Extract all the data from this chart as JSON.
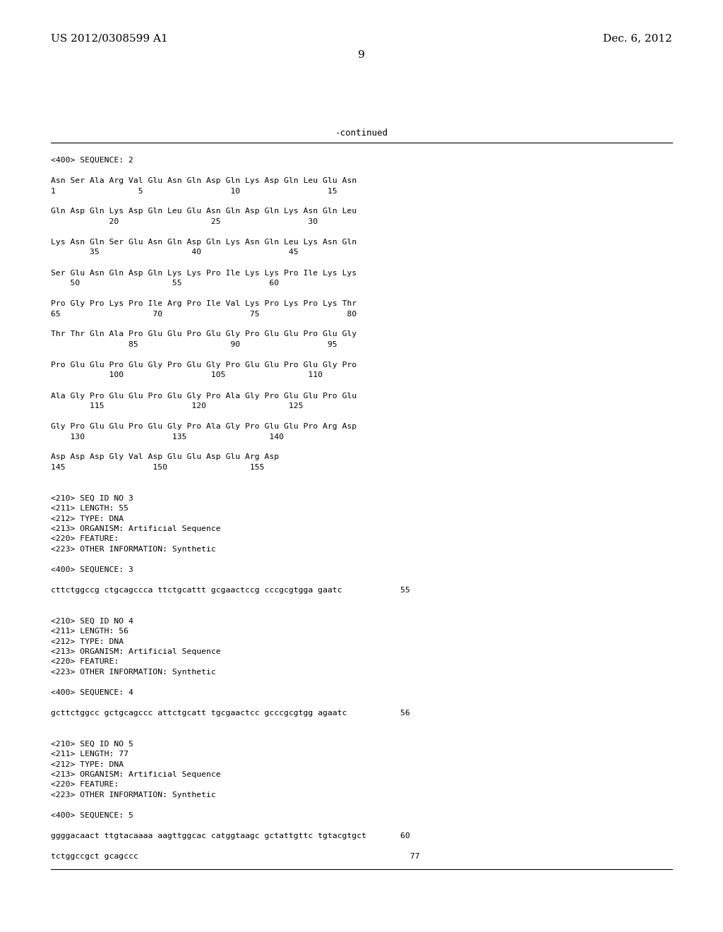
{
  "header_left": "US 2012/0308599 A1",
  "header_right": "Dec. 6, 2012",
  "page_number": "9",
  "continued_text": "-continued",
  "background_color": "#ffffff",
  "text_color": "#000000",
  "lines": [
    "<400> SEQUENCE: 2",
    "",
    "Asn Ser Ala Arg Val Glu Asn Gln Asp Gln Lys Asp Gln Leu Glu Asn",
    "1                 5                  10                  15",
    "",
    "Gln Asp Gln Lys Asp Gln Leu Glu Asn Gln Asp Gln Lys Asn Gln Leu",
    "            20                   25                  30",
    "",
    "Lys Asn Gln Ser Glu Asn Gln Asp Gln Lys Asn Gln Leu Lys Asn Gln",
    "        35                   40                  45",
    "",
    "Ser Glu Asn Gln Asp Gln Lys Lys Pro Ile Lys Lys Pro Ile Lys Lys",
    "    50                   55                  60",
    "",
    "Pro Gly Pro Lys Pro Ile Arg Pro Ile Val Lys Pro Lys Pro Lys Thr",
    "65                   70                  75                  80",
    "",
    "Thr Thr Gln Ala Pro Glu Glu Pro Glu Gly Pro Glu Glu Pro Glu Gly",
    "                85                   90                  95",
    "",
    "Pro Glu Glu Pro Glu Gly Pro Glu Gly Pro Glu Glu Pro Glu Gly Pro",
    "            100                  105                 110",
    "",
    "Ala Gly Pro Glu Glu Pro Glu Gly Pro Ala Gly Pro Glu Glu Pro Glu",
    "        115                  120                 125",
    "",
    "Gly Pro Glu Glu Pro Glu Gly Pro Ala Gly Pro Glu Glu Pro Arg Asp",
    "    130                  135                 140",
    "",
    "Asp Asp Asp Gly Val Asp Glu Glu Asp Glu Arg Asp",
    "145                  150                 155",
    "",
    "",
    "<210> SEQ ID NO 3",
    "<211> LENGTH: 55",
    "<212> TYPE: DNA",
    "<213> ORGANISM: Artificial Sequence",
    "<220> FEATURE:",
    "<223> OTHER INFORMATION: Synthetic",
    "",
    "<400> SEQUENCE: 3",
    "",
    "cttctggccg ctgcagccca ttctgcattt gcgaactccg cccgcgtgga gaatc            55",
    "",
    "",
    "<210> SEQ ID NO 4",
    "<211> LENGTH: 56",
    "<212> TYPE: DNA",
    "<213> ORGANISM: Artificial Sequence",
    "<220> FEATURE:",
    "<223> OTHER INFORMATION: Synthetic",
    "",
    "<400> SEQUENCE: 4",
    "",
    "gcttctggcc gctgcagccc attctgcatt tgcgaactcc gcccgcgtgg agaatc           56",
    "",
    "",
    "<210> SEQ ID NO 5",
    "<211> LENGTH: 77",
    "<212> TYPE: DNA",
    "<213> ORGANISM: Artificial Sequence",
    "<220> FEATURE:",
    "<223> OTHER INFORMATION: Synthetic",
    "",
    "<400> SEQUENCE: 5",
    "",
    "ggggacaact ttgtacaaaa aagttggcac catggtaagc gctattgttc tgtacgtgct       60",
    "",
    "tctggccgct gcagccc                                                        77"
  ]
}
